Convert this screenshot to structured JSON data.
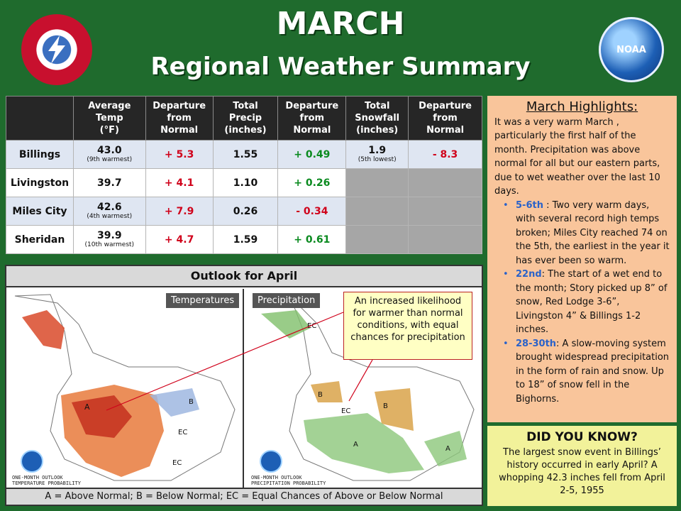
{
  "header": {
    "month": "MARCH",
    "subtitle": "Regional Weather Summary",
    "noaa_logo_text": "NOAA"
  },
  "table": {
    "headers": [
      "",
      "Average\nTemp\n(°F)",
      "Departure\nfrom\nNormal",
      "Total\nPrecip\n(inches)",
      "Departure\nfrom\nNormal",
      "Total\nSnowfall\n(inches)",
      "Departure\nfrom\nNormal"
    ],
    "rows": [
      {
        "city": "Billings",
        "temp": "43.0",
        "temp_note": "(9th warmest)",
        "temp_dep": "+ 5.3",
        "precip": "1.55",
        "precip_dep": "+ 0.49",
        "snow": "1.9",
        "snow_note": "(5th lowest)",
        "snow_dep": "- 8.3"
      },
      {
        "city": "Livingston",
        "temp": "39.7",
        "temp_note": "",
        "temp_dep": "+ 4.1",
        "precip": "1.10",
        "precip_dep": "+ 0.26",
        "snow": "",
        "snow_note": "",
        "snow_dep": ""
      },
      {
        "city": "Miles City",
        "temp": "42.6",
        "temp_note": "(4th warmest)",
        "temp_dep": "+ 7.9",
        "precip": "0.26",
        "precip_dep": "- 0.34",
        "snow": "",
        "snow_note": "",
        "snow_dep": ""
      },
      {
        "city": "Sheridan",
        "temp": "39.9",
        "temp_note": "(10th warmest)",
        "temp_dep": "+ 4.7",
        "precip": "1.59",
        "precip_dep": "+ 0.61",
        "snow": "",
        "snow_note": "",
        "snow_dep": ""
      }
    ]
  },
  "outlook": {
    "title": "Outlook for April",
    "temp_label": "Temperatures",
    "precip_label": "Precipitation",
    "callout": "An increased likelihood for warmer than normal conditions, with equal chances for precipitation",
    "temp_footer_1": "ONE-MONTH OUTLOOK",
    "temp_footer_2": "TEMPERATURE PROBABILITY",
    "precip_footer_1": "ONE-MONTH OUTLOOK",
    "precip_footer_2": "PRECIPITATION PROBABILITY",
    "legend": "A = Above Normal;  B = Below Normal;  EC = Equal Chances of Above or Below Normal"
  },
  "highlights": {
    "title": "March Highlights",
    "intro": "It was a very warm March , particularly the first half of the month.  Precipitation was above normal for all but our eastern parts, due to wet weather over the last 10 days.",
    "items": [
      {
        "date": "5-6th",
        "text": " : Two very warm days, with several record high temps broken; Miles City reached 74 on the 5th, the earliest in the year it has ever been so warm."
      },
      {
        "date": "22nd",
        "text": ": The start of a wet end to the month;  Story picked up 8” of snow, Red Lodge 3-6”, Livingston 4” & Billings 1-2 inches."
      },
      {
        "date": "28-30th",
        "text": ": A slow-moving system  brought widespread precipitation in the form of rain and snow.  Up to 18” of snow fell in the Bighorns."
      }
    ]
  },
  "did_you_know": {
    "title": "DID YOU KNOW?",
    "text": "The largest snow event in Billings’ history occurred in early April? A whopping 42.3 inches fell from April 2-5, 1955"
  },
  "colors": {
    "background": "#1f6b2d",
    "highlights_bg": "#f9c59b",
    "dyk_bg": "#f2f29a",
    "positive": "#d0021b",
    "precip_positive": "#0a8a1f",
    "date_accent": "#2a62c9"
  }
}
